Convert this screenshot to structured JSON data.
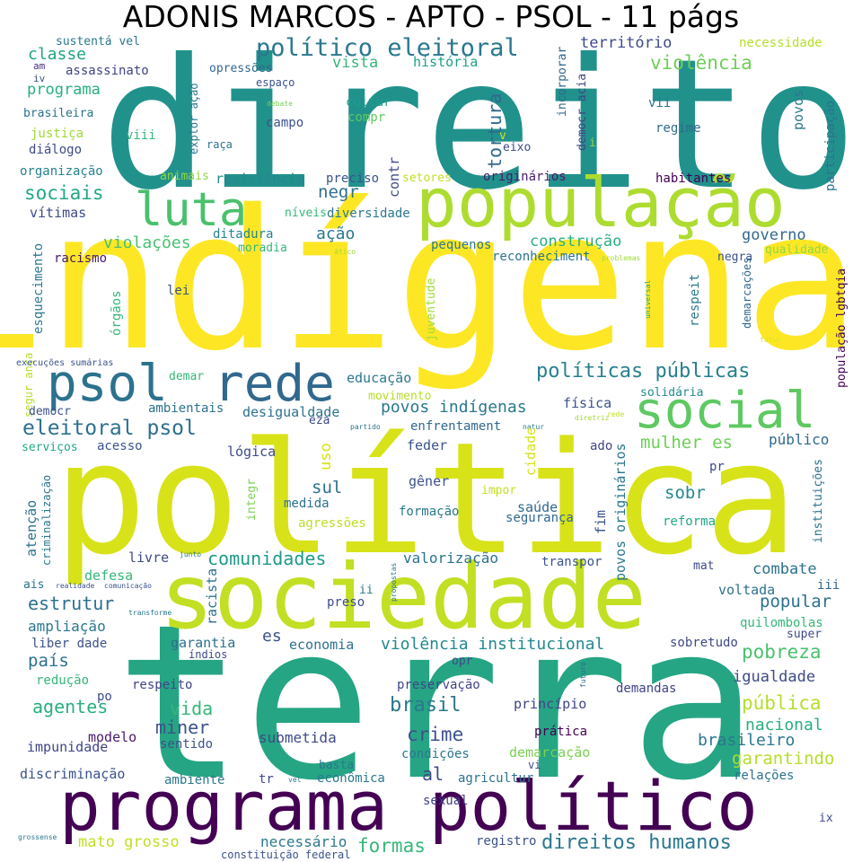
{
  "title": "ADONIS MARCOS - APTO - PSOL - 11 págs",
  "palette": {
    "purple": "#440154",
    "indigo": "#3b528b",
    "teal": "#21918c",
    "green": "#5ec962",
    "yellow": "#fde725"
  },
  "words": [
    {
      "text": "direito",
      "color": "#21918c"
    },
    {
      "text": "indígena",
      "color": "#fde725"
    },
    {
      "text": "política",
      "color": "#d8e219"
    },
    {
      "text": "terra",
      "color": "#25a584"
    },
    {
      "text": "sociedade",
      "color": "#c2df23"
    },
    {
      "text": "programa político",
      "color": "#440154"
    },
    {
      "text": "população",
      "color": "#addc30"
    },
    {
      "text": "luta",
      "color": "#4ac16d"
    },
    {
      "text": "psol",
      "color": "#2c728e"
    },
    {
      "text": "rede",
      "color": "#31688e"
    },
    {
      "text": "social",
      "color": "#5ec962"
    },
    {
      "text": "político eleitoral",
      "color": "#2a788e"
    },
    {
      "text": "eleitoral psol",
      "color": "#2d708e"
    },
    {
      "text": "políticas públicas",
      "color": "#27808e"
    },
    {
      "text": "direitos humanos",
      "color": "#2a788e"
    },
    {
      "text": "comunidades",
      "color": "#1f9a8a"
    },
    {
      "text": "estrutur",
      "color": "#2d708e"
    },
    {
      "text": "pobreza",
      "color": "#4ac16d"
    },
    {
      "text": "violência institucional",
      "color": "#23898e"
    },
    {
      "text": "povos indígenas",
      "color": "#2a788e"
    },
    {
      "text": "mulher es",
      "color": "#6ece58"
    },
    {
      "text": "sociais",
      "color": "#22a884"
    },
    {
      "text": "classe",
      "color": "#20a386"
    },
    {
      "text": "violência",
      "color": "#6ece58"
    },
    {
      "text": "território",
      "color": "#3e4a89"
    },
    {
      "text": "programa",
      "color": "#29af7f"
    },
    {
      "text": "vista",
      "color": "#35b779"
    },
    {
      "text": "história",
      "color": "#1fa188"
    },
    {
      "text": "necessidade",
      "color": "#b5de2b"
    },
    {
      "text": "sustentá vel",
      "color": "#2a788e"
    },
    {
      "text": "assassinato",
      "color": "#414487"
    },
    {
      "text": "opressões",
      "color": "#31688e"
    },
    {
      "text": "espaço",
      "color": "#3b528b"
    },
    {
      "text": "am",
      "color": "#472d7b"
    },
    {
      "text": "iv",
      "color": "#3b528b"
    },
    {
      "text": "brasileira",
      "color": "#2c728e"
    },
    {
      "text": "justiça",
      "color": "#a0da39"
    },
    {
      "text": "viii",
      "color": "#35b779"
    },
    {
      "text": "diálogo",
      "color": "#3e4a89"
    },
    {
      "text": "organização",
      "color": "#26828e"
    },
    {
      "text": "raça",
      "color": "#2c728e"
    },
    {
      "text": "campo",
      "color": "#3b528b"
    },
    {
      "text": "debate",
      "color": "#7ad151"
    },
    {
      "text": "cultur",
      "color": "#1f9e89"
    },
    {
      "text": "compr",
      "color": "#5ec962"
    },
    {
      "text": "tortura",
      "color": "#31688e"
    },
    {
      "text": "eixo",
      "color": "#3e4a89"
    },
    {
      "text": "v",
      "color": "#d8e219"
    },
    {
      "text": "i",
      "color": "#90d743"
    },
    {
      "text": "vii",
      "color": "#2c728e"
    },
    {
      "text": "regime",
      "color": "#31688e"
    },
    {
      "text": "povos",
      "color": "#2a788e"
    },
    {
      "text": "participação",
      "color": "#2c728e"
    },
    {
      "text": "incorporar",
      "color": "#31688e"
    },
    {
      "text": "democr acia",
      "color": "#414487"
    },
    {
      "text": "explor ação",
      "color": "#2a788e"
    },
    {
      "text": "animais",
      "color": "#90d743"
    },
    {
      "text": "resistência",
      "color": "#23898e"
    },
    {
      "text": "preciso",
      "color": "#3b528b"
    },
    {
      "text": "setores",
      "color": "#c2df23"
    },
    {
      "text": "originários",
      "color": "#481a6c"
    },
    {
      "text": "habitantes",
      "color": "#440154"
    },
    {
      "text": "contr",
      "color": "#3e4a89"
    },
    {
      "text": "vítimas",
      "color": "#3e4a89"
    },
    {
      "text": "níveis",
      "color": "#35b779"
    },
    {
      "text": "diversidade",
      "color": "#2a788e"
    },
    {
      "text": "negr",
      "color": "#2d708e"
    },
    {
      "text": "ação",
      "color": "#2a788e"
    },
    {
      "text": "governo",
      "color": "#31688e"
    },
    {
      "text": "violações",
      "color": "#48c16e"
    },
    {
      "text": "ditadura",
      "color": "#25848e"
    },
    {
      "text": "moradia",
      "color": "#35b779"
    },
    {
      "text": "construção",
      "color": "#29af7f"
    },
    {
      "text": "pequenos",
      "color": "#2a788e"
    },
    {
      "text": "reconheciment",
      "color": "#2c728e"
    },
    {
      "text": "qualidade",
      "color": "#90d743"
    },
    {
      "text": "ático",
      "color": "#a0da39"
    },
    {
      "text": "problemas",
      "color": "#a0da39"
    },
    {
      "text": "negra",
      "color": "#3b528b"
    },
    {
      "text": "racismo",
      "color": "#481a6c"
    },
    {
      "text": "esquecimento",
      "color": "#2a788e"
    },
    {
      "text": "órgãos",
      "color": "#35b779"
    },
    {
      "text": "lei",
      "color": "#3b528b"
    },
    {
      "text": "juventude",
      "color": "#a0da39"
    },
    {
      "text": "respeit",
      "color": "#2a788e"
    },
    {
      "text": "demarcações",
      "color": "#31688e"
    },
    {
      "text": "população lgbtqia",
      "color": "#440154"
    },
    {
      "text": "universal",
      "color": "#20a386"
    },
    {
      "text": "futur",
      "color": "#d8e219"
    },
    {
      "text": "segur ança",
      "color": "#b5de2b"
    },
    {
      "text": "execuções sumárias",
      "color": "#3b528b"
    },
    {
      "text": "demar",
      "color": "#35b779"
    },
    {
      "text": "educação",
      "color": "#2a788e"
    },
    {
      "text": "movimento",
      "color": "#b5de2b"
    },
    {
      "text": "física",
      "color": "#3b528b"
    },
    {
      "text": "solidária",
      "color": "#23898e"
    },
    {
      "text": "ambientais",
      "color": "#2c728e"
    },
    {
      "text": "desigualdade",
      "color": "#2c728e"
    },
    {
      "text": "democr",
      "color": "#3b528b"
    },
    {
      "text": "eza",
      "color": "#3e4a89"
    },
    {
      "text": "partido",
      "color": "#2c728e"
    },
    {
      "text": "enfrentament",
      "color": "#31688e"
    },
    {
      "text": "natur",
      "color": "#2a788e"
    },
    {
      "text": "diretriz",
      "color": "#a0da39"
    },
    {
      "text": "rede",
      "color": "#c2df23"
    },
    {
      "text": "serviços",
      "color": "#22a884"
    },
    {
      "text": "acesso",
      "color": "#3b528b"
    },
    {
      "text": "uso",
      "color": "#d8e219"
    },
    {
      "text": "feder",
      "color": "#3b528b"
    },
    {
      "text": "cidade",
      "color": "#d8e219"
    },
    {
      "text": "ado",
      "color": "#414487"
    },
    {
      "text": "público",
      "color": "#31688e"
    },
    {
      "text": "lógica",
      "color": "#3e4a89"
    },
    {
      "text": "criminalização",
      "color": "#2a788e"
    },
    {
      "text": "integr",
      "color": "#7ad151"
    },
    {
      "text": "gêner",
      "color": "#3b528b"
    },
    {
      "text": "impor",
      "color": "#c2df23"
    },
    {
      "text": "povos originários",
      "color": "#2a788e"
    },
    {
      "text": "pr",
      "color": "#3e4a89"
    },
    {
      "text": "instituições",
      "color": "#2c728e"
    },
    {
      "text": "sul",
      "color": "#2c728e"
    },
    {
      "text": "sobr",
      "color": "#23898e"
    },
    {
      "text": "atenção",
      "color": "#2d708e"
    },
    {
      "text": "medida",
      "color": "#2c728e"
    },
    {
      "text": "saúde",
      "color": "#31688e"
    },
    {
      "text": "fim",
      "color": "#3b528b"
    },
    {
      "text": "agressões",
      "color": "#bddf26"
    },
    {
      "text": "formação",
      "color": "#2a788e"
    },
    {
      "text": "segurança",
      "color": "#31688e"
    },
    {
      "text": "reforma",
      "color": "#22a884"
    },
    {
      "text": "livre",
      "color": "#3e4a89"
    },
    {
      "text": "junto",
      "color": "#2a788e"
    },
    {
      "text": "valorização",
      "color": "#2c728e"
    },
    {
      "text": "transpor",
      "color": "#3b528b"
    },
    {
      "text": "mat",
      "color": "#3e4a89"
    },
    {
      "text": "combate",
      "color": "#2c728e"
    },
    {
      "text": "defesa",
      "color": "#35b779"
    },
    {
      "text": "racista",
      "color": "#2c728e"
    },
    {
      "text": "propostas",
      "color": "#2a788e"
    },
    {
      "text": "ii",
      "color": "#2a788e"
    },
    {
      "text": "voltada",
      "color": "#2c728e"
    },
    {
      "text": "iii",
      "color": "#31688e"
    },
    {
      "text": "ais",
      "color": "#2c728e"
    },
    {
      "text": "realidade",
      "color": "#3b528b"
    },
    {
      "text": "comunicação",
      "color": "#3b528b"
    },
    {
      "text": "preso",
      "color": "#3e4a89"
    },
    {
      "text": "popular",
      "color": "#2c728e"
    },
    {
      "text": "transforme",
      "color": "#2a788e"
    },
    {
      "text": "ampliação",
      "color": "#2a788e"
    },
    {
      "text": "quilombolas",
      "color": "#35b779"
    },
    {
      "text": "super",
      "color": "#3e4a89"
    },
    {
      "text": "liber dade",
      "color": "#3b528b"
    },
    {
      "text": "garantia",
      "color": "#2c728e"
    },
    {
      "text": "es",
      "color": "#3b528b"
    },
    {
      "text": "economia",
      "color": "#2c728e"
    },
    {
      "text": "sobretudo",
      "color": "#3e4a89"
    },
    {
      "text": "país",
      "color": "#2c728e"
    },
    {
      "text": "índios",
      "color": "#3e4a89"
    },
    {
      "text": "opr",
      "color": "#3e4a89"
    },
    {
      "text": "futuro",
      "color": "#31688e"
    },
    {
      "text": "igualdade",
      "color": "#3e4a89"
    },
    {
      "text": "redução",
      "color": "#35b779"
    },
    {
      "text": "respeito",
      "color": "#414487"
    },
    {
      "text": "preservação",
      "color": "#414487"
    },
    {
      "text": "demandas",
      "color": "#414487"
    },
    {
      "text": "agentes",
      "color": "#29af7f"
    },
    {
      "text": "po",
      "color": "#3e4a89"
    },
    {
      "text": "vida",
      "color": "#35b779"
    },
    {
      "text": "brasil",
      "color": "#2a788e"
    },
    {
      "text": "princípio",
      "color": "#414487"
    },
    {
      "text": "pública",
      "color": "#b5de2b"
    },
    {
      "text": "miner",
      "color": "#3b528b"
    },
    {
      "text": "nacional",
      "color": "#29af7f"
    },
    {
      "text": "modelo",
      "color": "#481a6c"
    },
    {
      "text": "prática",
      "color": "#440154"
    },
    {
      "text": "brasileiro",
      "color": "#2a788e"
    },
    {
      "text": "impunidade",
      "color": "#414487"
    },
    {
      "text": "sentido",
      "color": "#3b528b"
    },
    {
      "text": "submetida",
      "color": "#3e4a89"
    },
    {
      "text": "crime",
      "color": "#3b528b"
    },
    {
      "text": "condições",
      "color": "#2a788e"
    },
    {
      "text": "demarcação",
      "color": "#7ad151"
    },
    {
      "text": "garantindo",
      "color": "#b5de2b"
    },
    {
      "text": "basta",
      "color": "#2a788e"
    },
    {
      "text": "discriminação",
      "color": "#3b528b"
    },
    {
      "text": "ambiente",
      "color": "#2a788e"
    },
    {
      "text": "vi",
      "color": "#3e4a89"
    },
    {
      "text": "relações",
      "color": "#2c728e"
    },
    {
      "text": "tr",
      "color": "#3e4a89"
    },
    {
      "text": "vel",
      "color": "#2a788e"
    },
    {
      "text": "econômica",
      "color": "#2a788e"
    },
    {
      "text": "al",
      "color": "#3e4a89"
    },
    {
      "text": "agricultur",
      "color": "#2c728e"
    },
    {
      "text": "sexual",
      "color": "#414487"
    },
    {
      "text": "grossense",
      "color": "#2a788e"
    },
    {
      "text": "mato grosso",
      "color": "#c2df23"
    },
    {
      "text": "necessário",
      "color": "#2a788e"
    },
    {
      "text": "constituição federal",
      "color": "#3b528b"
    },
    {
      "text": "formas",
      "color": "#35b779"
    },
    {
      "text": "registro",
      "color": "#3b528b"
    },
    {
      "text": "ix",
      "color": "#3e4a89"
    }
  ]
}
